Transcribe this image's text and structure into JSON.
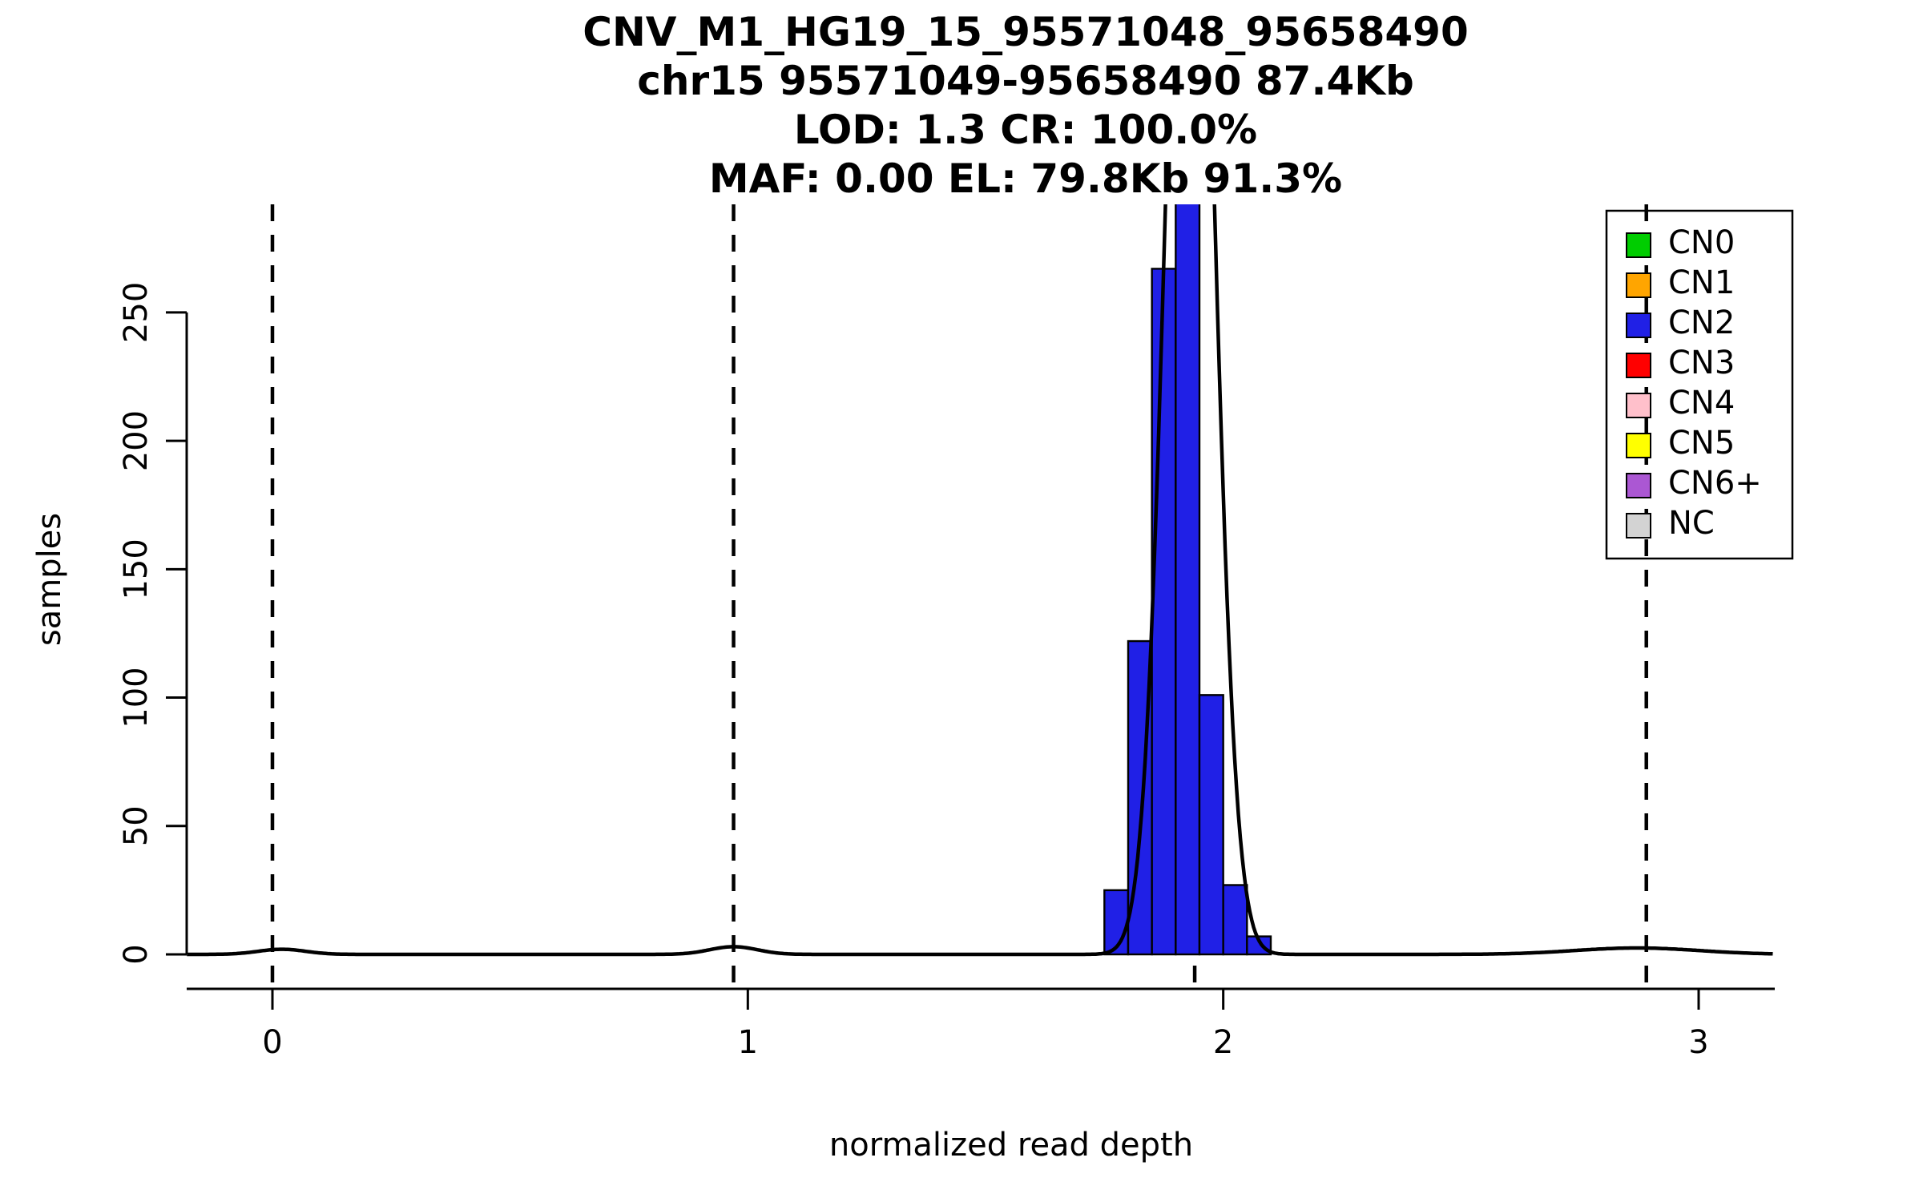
{
  "chart_data": {
    "type": "bar",
    "title_lines": [
      "CNV_M1_HG19_15_95571048_95658490",
      "chr15 95571049-95658490 87.4Kb",
      "LOD: 1.3 CR: 100.0%",
      "MAF: 0.00 EL: 79.8Kb 91.3%"
    ],
    "xlabel": "normalized read depth",
    "ylabel": "samples",
    "x_ticks": [
      0,
      1,
      2,
      3
    ],
    "y_ticks": [
      0,
      50,
      100,
      150,
      200,
      250
    ],
    "xlim": [
      -0.18,
      3.16
    ],
    "ylim": [
      0,
      292
    ],
    "grid": false,
    "bar_color": "#2020E6",
    "bar_edge_color": "#000000",
    "histogram": {
      "bin_width": 0.05,
      "bins": [
        {
          "x": 1.75,
          "count": 25
        },
        {
          "x": 1.8,
          "count": 122
        },
        {
          "x": 1.85,
          "count": 267
        },
        {
          "x": 1.9,
          "count": 330
        },
        {
          "x": 1.95,
          "count": 101
        },
        {
          "x": 2.0,
          "count": 27
        },
        {
          "x": 2.05,
          "count": 7
        }
      ]
    },
    "density_curve": {
      "color": "#000000",
      "components": [
        {
          "mean": 1.93,
          "sd": 0.048,
          "amp": 520
        },
        {
          "mean": 0.97,
          "sd": 0.05,
          "amp": 3
        },
        {
          "mean": 0.02,
          "sd": 0.05,
          "amp": 2
        },
        {
          "mean": 2.87,
          "sd": 0.13,
          "amp": 2.5
        }
      ]
    },
    "guide_lines_x": [
      0,
      0.97,
      1.94,
      2.89
    ],
    "legend": {
      "position": "top-right",
      "items": [
        {
          "label": "CN0",
          "color": "#00CD00"
        },
        {
          "label": "CN1",
          "color": "#FFA500"
        },
        {
          "label": "CN2",
          "color": "#2020E6"
        },
        {
          "label": "CN3",
          "color": "#FF0000"
        },
        {
          "label": "CN4",
          "color": "#FFC0CB"
        },
        {
          "label": "CN5",
          "color": "#FFFF00"
        },
        {
          "label": "CN6+",
          "color": "#AB57D3"
        },
        {
          "label": "NC",
          "color": "#D3D3D3"
        }
      ]
    }
  }
}
